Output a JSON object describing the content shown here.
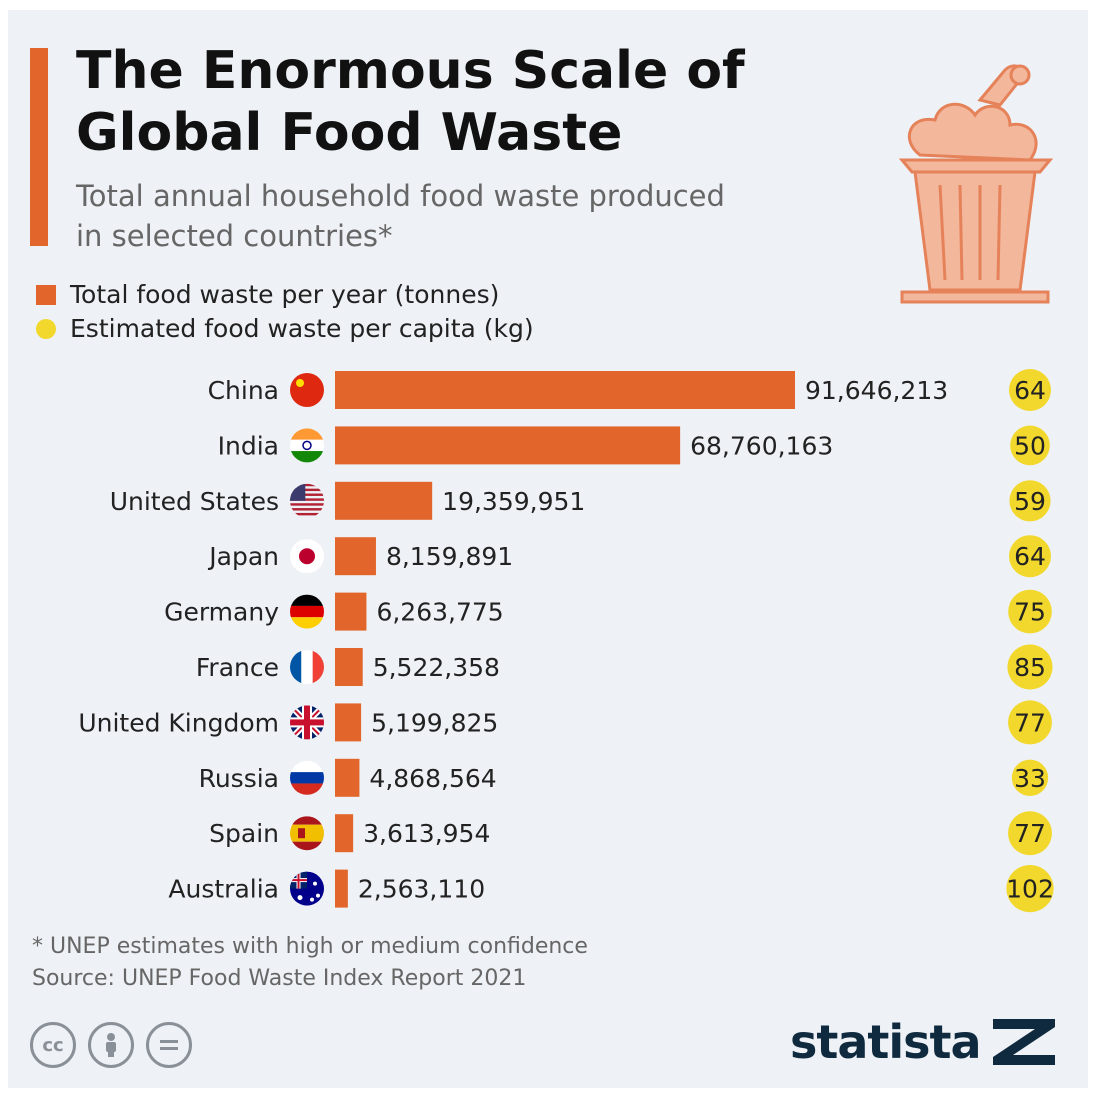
{
  "title": "The Enormous Scale of Global Food Waste",
  "subtitle_line1": "Total annual household food waste produced",
  "subtitle_line2": "in selected countries*",
  "legend": {
    "tonnes": "Total food waste per year (tonnes)",
    "capita": "Estimated food waste per capita (kg)"
  },
  "footnote": "* UNEP estimates with high or medium confidence",
  "source": "Source: UNEP Food Waste Index Report 2021",
  "brand": "statista",
  "colors": {
    "bar": "#e2662b",
    "bubble": "#f2d82c",
    "text": "#222222"
  },
  "icons": [
    "food-waste-bin-icon",
    "cc-icon",
    "by-icon",
    "nd-icon",
    "statista-logo-icon"
  ],
  "chart_data": {
    "type": "bar",
    "orientation": "horizontal",
    "categories": [
      "China",
      "India",
      "United States",
      "Japan",
      "Germany",
      "France",
      "United Kingdom",
      "Russia",
      "Spain",
      "Australia"
    ],
    "value_labels": [
      "91,646,213",
      "68,760,163",
      "19,359,951",
      "8,159,891",
      "6,263,775",
      "5,522,358",
      "5,199,825",
      "4,868,564",
      "3,613,954",
      "2,563,110"
    ],
    "series": [
      {
        "name": "Total food waste per year (tonnes)",
        "values": [
          91646213,
          68760163,
          19359951,
          8159891,
          6263775,
          5522358,
          5199825,
          4868564,
          3613954,
          2563110
        ]
      },
      {
        "name": "Estimated food waste per capita (kg)",
        "values": [
          64,
          50,
          59,
          64,
          75,
          85,
          77,
          33,
          77,
          102
        ]
      }
    ],
    "flags": [
      "flag-china-icon",
      "flag-india-icon",
      "flag-united-states-icon",
      "flag-japan-icon",
      "flag-germany-icon",
      "flag-france-icon",
      "flag-united-kingdom-icon",
      "flag-russia-icon",
      "flag-spain-icon",
      "flag-australia-icon"
    ]
  }
}
